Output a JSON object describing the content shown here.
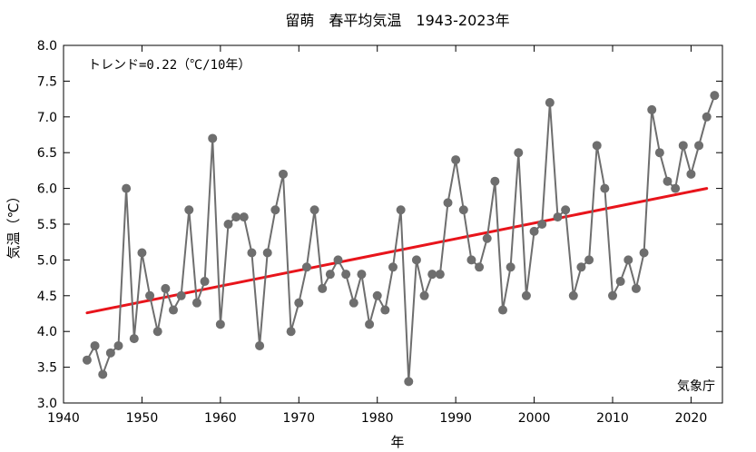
{
  "chart_data": {
    "type": "line",
    "title": "留萌　春平均気温　1943-2023年",
    "xlabel": "年",
    "ylabel": "気温（℃）",
    "xlim": [
      1940,
      2024
    ],
    "ylim": [
      3.0,
      8.0
    ],
    "xticks": [
      1940,
      1950,
      1960,
      1970,
      1980,
      1990,
      2000,
      2010,
      2020
    ],
    "yticks": [
      3.0,
      3.5,
      4.0,
      4.5,
      5.0,
      5.5,
      6.0,
      6.5,
      7.0,
      7.5,
      8.0
    ],
    "grid": false,
    "annotation": "トレンド=0.22（℃/10年）",
    "credit": "気象庁",
    "colors": {
      "series": "#6e6e6e",
      "trend": "#e8141b"
    },
    "series": [
      {
        "x": [
          1943,
          1944,
          1945,
          1946,
          1947,
          1948,
          1949,
          1950,
          1951,
          1952,
          1953,
          1954,
          1955,
          1956,
          1957,
          1958,
          1959,
          1960,
          1961,
          1962,
          1963,
          1964,
          1965,
          1966,
          1967,
          1968,
          1969,
          1970,
          1971,
          1972,
          1973,
          1974,
          1975,
          1976,
          1977,
          1978,
          1979,
          1980,
          1981,
          1982,
          1983,
          1984,
          1985,
          1986,
          1987,
          1988,
          1989,
          1990,
          1991,
          1992,
          1993,
          1994,
          1995,
          1996,
          1997,
          1998,
          1999,
          2000,
          2001,
          2002,
          2003,
          2004,
          2005,
          2006,
          2007,
          2008,
          2009,
          2010,
          2011,
          2012,
          2013,
          2014,
          2015,
          2016,
          2017,
          2018,
          2019,
          2020,
          2021,
          2022,
          2023
        ],
        "values": [
          3.6,
          3.8,
          3.4,
          3.7,
          3.8,
          6.0,
          3.9,
          5.1,
          4.5,
          4.0,
          4.6,
          4.3,
          4.5,
          5.7,
          4.4,
          4.7,
          6.7,
          4.1,
          5.5,
          5.6,
          5.6,
          5.1,
          3.8,
          5.1,
          5.7,
          6.2,
          4.0,
          4.4,
          4.9,
          5.7,
          4.6,
          4.8,
          5.0,
          4.8,
          4.4,
          4.8,
          4.1,
          4.5,
          4.3,
          4.9,
          5.7,
          3.3,
          5.0,
          4.5,
          4.8,
          4.8,
          5.8,
          6.4,
          5.7,
          5.0,
          4.9,
          5.3,
          6.1,
          4.3,
          4.9,
          6.5,
          4.5,
          5.4,
          5.5,
          7.2,
          5.6,
          5.7,
          4.5,
          4.9,
          5.0,
          6.6,
          6.0,
          4.5,
          4.7,
          5.0,
          4.6,
          5.1,
          7.1,
          6.5,
          6.1,
          6.0,
          6.6,
          6.2,
          6.6,
          7.0,
          7.3
        ]
      }
    ],
    "trend_line": {
      "x": [
        1943,
        2022
      ],
      "values": [
        4.26,
        6.0
      ]
    }
  }
}
